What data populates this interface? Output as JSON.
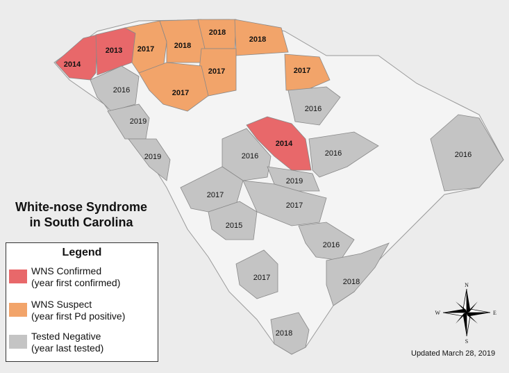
{
  "map": {
    "title_line1": "White-nose Syndrome",
    "title_line2": "in South Carolina",
    "updated": "Updated March 28, 2019",
    "colors": {
      "confirmed": "#e8686a",
      "suspect": "#f2a46a",
      "tested_negative": "#c4c4c4",
      "untested": "#f4f4f4",
      "background": "#ececec"
    },
    "counties": [
      {
        "year": "2014",
        "status": "confirmed"
      },
      {
        "year": "2013",
        "status": "confirmed"
      },
      {
        "year": "2017",
        "status": "suspect"
      },
      {
        "year": "2018",
        "status": "suspect"
      },
      {
        "year": "2018",
        "status": "suspect"
      },
      {
        "year": "2018",
        "status": "suspect"
      },
      {
        "year": "2017",
        "status": "suspect"
      },
      {
        "year": "2017",
        "status": "suspect"
      },
      {
        "year": "2017",
        "status": "suspect"
      },
      {
        "year": "2016",
        "status": "tested_negative"
      },
      {
        "year": "2019",
        "status": "tested_negative"
      },
      {
        "year": "2019",
        "status": "tested_negative"
      },
      {
        "year": "2016",
        "status": "tested_negative"
      },
      {
        "year": "2014",
        "status": "confirmed"
      },
      {
        "year": "2016",
        "status": "tested_negative"
      },
      {
        "year": "2016",
        "status": "tested_negative"
      },
      {
        "year": "2016",
        "status": "tested_negative"
      },
      {
        "year": "2019",
        "status": "tested_negative"
      },
      {
        "year": "2017",
        "status": "tested_negative"
      },
      {
        "year": "2017",
        "status": "tested_negative"
      },
      {
        "year": "2015",
        "status": "tested_negative"
      },
      {
        "year": "2016",
        "status": "tested_negative"
      },
      {
        "year": "2017",
        "status": "tested_negative"
      },
      {
        "year": "2018",
        "status": "tested_negative"
      },
      {
        "year": "2018",
        "status": "tested_negative"
      }
    ],
    "compass": {
      "n": "N",
      "s": "S",
      "e": "E",
      "w": "W"
    }
  },
  "legend": {
    "title": "Legend",
    "items": [
      {
        "line1": "WNS Confirmed",
        "line2": "(year first confirmed)"
      },
      {
        "line1": "WNS Suspect",
        "line2": "(year first Pd positive)"
      },
      {
        "line1": "Tested Negative",
        "line2": "(year last tested)"
      }
    ]
  }
}
